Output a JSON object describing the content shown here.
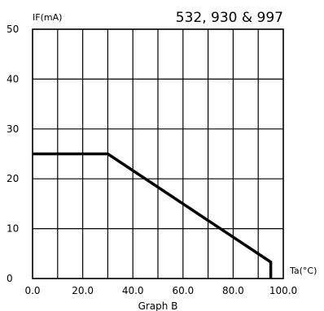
{
  "chart_data": {
    "type": "line",
    "title": "532, 930 & 997",
    "caption": "Graph B",
    "ylabel": "IF(mA)",
    "xlabel": "Ta(°C)",
    "xlim": [
      0,
      100
    ],
    "ylim": [
      0,
      50
    ],
    "xticks": [
      0,
      10,
      20,
      30,
      40,
      50,
      60,
      70,
      80,
      90,
      100
    ],
    "xtick_labels": [
      "0.0",
      "20.0",
      "40.0",
      "60.0",
      "80.0",
      "100.0"
    ],
    "xtick_label_values": [
      0,
      20,
      40,
      60,
      80,
      100
    ],
    "yticks": [
      0,
      10,
      20,
      30,
      40,
      50
    ],
    "ytick_labels": [
      "0",
      "10",
      "20",
      "30",
      "40",
      "50"
    ],
    "grid": true,
    "series": [
      {
        "x": [
          0,
          30,
          95,
          95
        ],
        "y": [
          25,
          25,
          3.3,
          0
        ]
      }
    ]
  }
}
